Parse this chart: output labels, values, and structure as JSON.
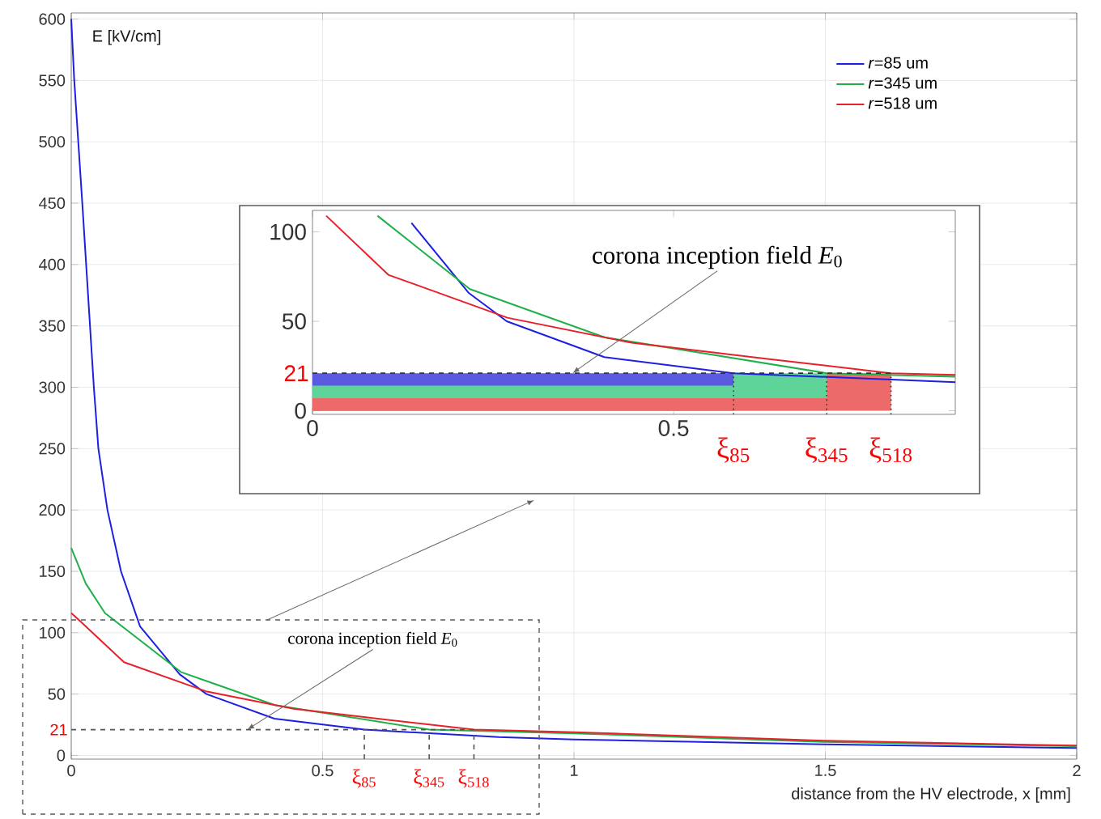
{
  "chart_data": [
    {
      "type": "line",
      "xlabel": "distance from the HV electrode, x [mm]",
      "ylabel": "E [kV/cm]",
      "xlim": [
        0,
        2
      ],
      "ylim": [
        -3,
        605
      ],
      "xticks": [
        0,
        0.5,
        1,
        1.5,
        2
      ],
      "yticks": [
        0,
        50,
        100,
        150,
        200,
        250,
        300,
        350,
        400,
        450,
        500,
        550,
        600
      ],
      "grid": true,
      "legend": "top right",
      "series": [
        {
          "name": "*r*=85 um",
          "color": "#1f1fe0",
          "x": [
            0,
            0.006,
            0.022,
            0.045,
            0.054,
            0.072,
            0.099,
            0.137,
            0.216,
            0.269,
            0.404,
            0.583,
            0.85,
            1,
            1.5,
            2
          ],
          "values": [
            600,
            550,
            450,
            300,
            250,
            200,
            150,
            105,
            66,
            50,
            30,
            21,
            15,
            13,
            9,
            6
          ]
        },
        {
          "name": "*r*=345 um",
          "color": "#1fb04a",
          "x": [
            0,
            0.029,
            0.067,
            0.218,
            0.405,
            0.712,
            1,
            1.5,
            2
          ],
          "values": [
            169,
            140,
            116,
            68,
            41,
            21,
            18,
            11,
            7.5
          ]
        },
        {
          "name": "*r*=518 um",
          "color": "#e8202a",
          "x": [
            0,
            0.019,
            0.105,
            0.27,
            0.442,
            0.63,
            0.801,
            1,
            1.5,
            2
          ],
          "values": [
            116,
            109,
            76,
            52,
            38,
            29,
            21,
            19,
            12,
            8
          ]
        }
      ],
      "ref_lines": [
        {
          "axis": "y",
          "value": 21,
          "label": "21",
          "color": "#555555",
          "line_style": "dashed"
        },
        {
          "axis": "x",
          "value": 0.583,
          "label": "ξ$_{85}$",
          "color": "#555555",
          "line_style": "dashed"
        },
        {
          "axis": "x",
          "value": 0.712,
          "label": "ξ$_{345}$",
          "color": "#555555",
          "line_style": "dashed"
        },
        {
          "axis": "x",
          "value": 0.801,
          "label": "ξ$_{518}$",
          "color": "#555555",
          "line_style": "dashed"
        }
      ],
      "annotations": [
        {
          "text": "corona inception field *E*$_{0}$",
          "x": 0.35,
          "y": 21
        }
      ]
    },
    {
      "type": "line",
      "xlim": [
        0,
        0.89
      ],
      "ylim": [
        -2,
        112
      ],
      "xticks": [
        0,
        0.5
      ],
      "yticks": [
        0,
        50,
        100
      ],
      "series": [
        {
          "type": "area",
          "color": "#5a5ae0",
          "x": [
            0,
            0.583
          ],
          "values": [
            21,
            21
          ]
        },
        {
          "type": "area",
          "color": "#5fd49a",
          "x": [
            0,
            0.583,
            0.583,
            0.712
          ],
          "values": [
            14,
            14,
            21,
            21
          ]
        },
        {
          "type": "area",
          "color": "#ec6a6a",
          "x": [
            0,
            0.712,
            0.712,
            0.801
          ],
          "values": [
            7,
            7,
            21,
            21
          ]
        },
        {
          "color": "#1f1fe0",
          "x": [
            0.137,
            0.216,
            0.269,
            0.404,
            0.583,
            0.89
          ],
          "values": [
            105,
            66,
            50,
            30,
            21,
            16
          ]
        },
        {
          "color": "#1fb04a",
          "x": [
            0.09,
            0.218,
            0.405,
            0.712,
            0.89
          ],
          "values": [
            109,
            68,
            41,
            21,
            19
          ]
        },
        {
          "color": "#e8202a",
          "x": [
            0.019,
            0.105,
            0.27,
            0.442,
            0.63,
            0.801,
            0.89
          ],
          "values": [
            109,
            76,
            52,
            38,
            29,
            21,
            20
          ]
        }
      ],
      "ref_lines": [
        {
          "axis": "y",
          "value": 21,
          "label": "21",
          "color": "#333333",
          "line_style": "dashed"
        },
        {
          "axis": "x",
          "value": 0.583,
          "label": "ξ$_{85}$",
          "color": "#333333",
          "line_style": "dotted"
        },
        {
          "axis": "x",
          "value": 0.712,
          "label": "ξ$_{345}$",
          "color": "#333333",
          "line_style": "dotted"
        },
        {
          "axis": "x",
          "value": 0.801,
          "label": "ξ$_{518}$",
          "color": "#333333",
          "line_style": "dotted"
        }
      ],
      "annotations": [
        {
          "text": "corona inception field *E*$_{0}$",
          "x": 0.36,
          "y": 21
        }
      ]
    }
  ]
}
